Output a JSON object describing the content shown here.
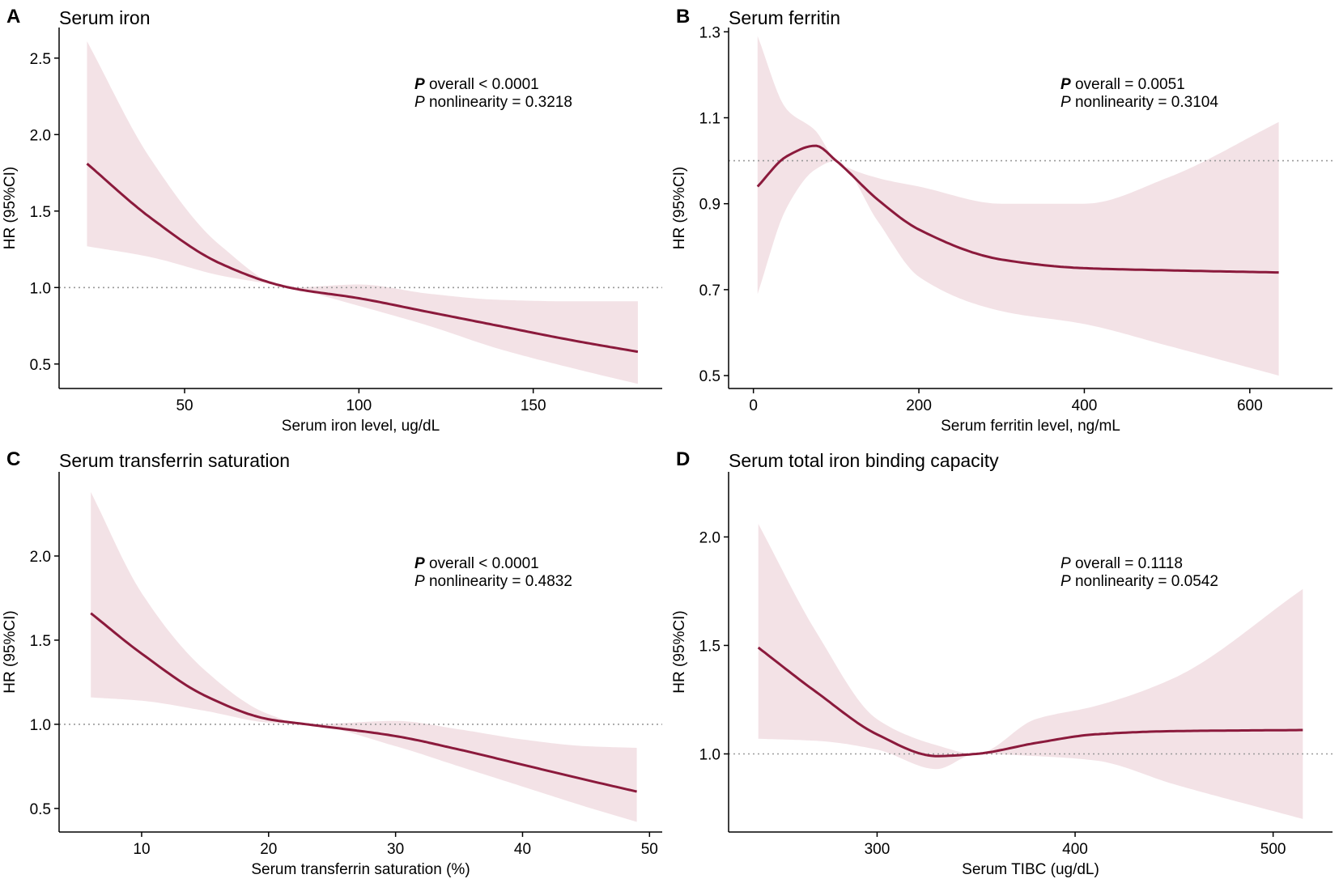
{
  "figure": {
    "colors": {
      "curve": "#8b1a3c",
      "band": "#f3e2e6",
      "reference": "#9a9a9a",
      "axis": "#000000"
    }
  },
  "chart_data": [
    {
      "type": "line",
      "panel": "A",
      "title": "Serum iron",
      "xlabel": "Serum iron level, ug/dL",
      "ylabel": "HR (95%CI)",
      "xlim": [
        14,
        187
      ],
      "ylim": [
        0.34,
        2.7
      ],
      "xticks": [
        50,
        100,
        150
      ],
      "xtick_labels": [
        "50",
        "100",
        "150"
      ],
      "yticks": [
        0.5,
        1.0,
        1.5,
        2.0,
        2.5
      ],
      "ytick_labels": [
        "0.5",
        "1.0",
        "1.5",
        "2.0",
        "2.5"
      ],
      "reference_y": 1.0,
      "annotations": [
        {
          "p_label": "P",
          "p_bold": true,
          "text": " overall < 0.0001"
        },
        {
          "p_label": "P",
          "p_bold": false,
          "text": " nonlinearity = 0.3218"
        }
      ],
      "series": [
        {
          "name": "HR",
          "x": [
            22,
            40,
            60,
            80,
            100,
            120,
            140,
            160,
            180
          ],
          "values": [
            1.81,
            1.46,
            1.16,
            1.0,
            0.93,
            0.84,
            0.75,
            0.66,
            0.58
          ]
        },
        {
          "name": "lower 95% CI",
          "x": [
            22,
            40,
            60,
            80,
            100,
            120,
            140,
            160,
            180
          ],
          "values": [
            1.27,
            1.2,
            1.08,
            1.0,
            0.88,
            0.75,
            0.6,
            0.48,
            0.37
          ]
        },
        {
          "name": "upper 95% CI",
          "x": [
            22,
            40,
            60,
            80,
            100,
            120,
            140,
            160,
            180
          ],
          "values": [
            2.61,
            1.85,
            1.28,
            1.0,
            1.02,
            0.96,
            0.92,
            0.91,
            0.91
          ]
        }
      ]
    },
    {
      "type": "line",
      "panel": "B",
      "title": "Serum ferritin",
      "xlabel": "Serum ferritin level, ng/mL",
      "ylabel": "HR (95%CI)",
      "xlim": [
        -30,
        700
      ],
      "ylim": [
        0.47,
        1.31
      ],
      "xticks": [
        0,
        200,
        400,
        600
      ],
      "xtick_labels": [
        "0",
        "200",
        "400",
        "600"
      ],
      "yticks": [
        0.5,
        0.7,
        0.9,
        1.1,
        1.3
      ],
      "ytick_labels": [
        "0.5",
        "0.7",
        "0.9",
        "1.1",
        "1.3"
      ],
      "reference_y": 1.0,
      "annotations": [
        {
          "p_label": "P",
          "p_bold": true,
          "text": " overall = 0.0051"
        },
        {
          "p_label": "P",
          "p_bold": false,
          "text": " nonlinearity  = 0.3104"
        }
      ],
      "series": [
        {
          "name": "HR",
          "x": [
            5,
            40,
            75,
            100,
            150,
            200,
            300,
            400,
            500,
            635
          ],
          "values": [
            0.94,
            1.01,
            1.035,
            1.0,
            0.91,
            0.84,
            0.77,
            0.75,
            0.745,
            0.74
          ]
        },
        {
          "name": "lower 95% CI",
          "x": [
            5,
            40,
            75,
            100,
            150,
            200,
            300,
            400,
            500,
            635
          ],
          "values": [
            0.69,
            0.89,
            0.98,
            1.0,
            0.86,
            0.73,
            0.65,
            0.62,
            0.57,
            0.5
          ]
        },
        {
          "name": "upper 95% CI",
          "x": [
            5,
            40,
            75,
            100,
            150,
            200,
            300,
            400,
            500,
            635
          ],
          "values": [
            1.29,
            1.12,
            1.07,
            1.0,
            0.96,
            0.94,
            0.9,
            0.9,
            0.96,
            1.09
          ]
        }
      ]
    },
    {
      "type": "line",
      "panel": "C",
      "title": "Serum transferrin saturation",
      "xlabel": "Serum transferrin saturation (%)",
      "ylabel": "HR (95%CI)",
      "xlim": [
        3.5,
        51
      ],
      "ylim": [
        0.36,
        2.5
      ],
      "xticks": [
        10,
        20,
        30,
        40,
        50
      ],
      "xtick_labels": [
        "10",
        "20",
        "30",
        "40",
        "50"
      ],
      "yticks": [
        0.5,
        1.0,
        1.5,
        2.0
      ],
      "ytick_labels": [
        "0.5",
        "1.0",
        "1.5",
        "2.0"
      ],
      "reference_y": 1.0,
      "annotations": [
        {
          "p_label": "P",
          "p_bold": true,
          "text": " overall < 0.0001"
        },
        {
          "p_label": "P",
          "p_bold": false,
          "text": " nonlinearity = 0.4832"
        }
      ],
      "series": [
        {
          "name": "HR",
          "x": [
            6,
            10,
            15,
            20,
            23,
            30,
            35,
            40,
            45,
            49
          ],
          "values": [
            1.66,
            1.42,
            1.17,
            1.03,
            1.0,
            0.93,
            0.85,
            0.76,
            0.67,
            0.6
          ]
        },
        {
          "name": "lower 95% CI",
          "x": [
            6,
            10,
            15,
            20,
            23,
            30,
            35,
            40,
            45,
            49
          ],
          "values": [
            1.16,
            1.14,
            1.08,
            1.01,
            1.0,
            0.87,
            0.75,
            0.63,
            0.51,
            0.42
          ]
        },
        {
          "name": "upper 95% CI",
          "x": [
            6,
            10,
            15,
            20,
            23,
            30,
            35,
            40,
            45,
            49
          ],
          "values": [
            2.38,
            1.78,
            1.32,
            1.06,
            1.0,
            1.02,
            0.97,
            0.91,
            0.87,
            0.86
          ]
        }
      ]
    },
    {
      "type": "line",
      "panel": "D",
      "title": "Serum total iron binding capacity",
      "xlabel": "Serum TIBC (ug/dL)",
      "ylabel": "HR (95%CI)",
      "xlim": [
        225,
        530
      ],
      "ylim": [
        0.64,
        2.3
      ],
      "xticks": [
        300,
        400,
        500
      ],
      "xtick_labels": [
        "300",
        "400",
        "500"
      ],
      "yticks": [
        1.0,
        1.5,
        2.0
      ],
      "ytick_labels": [
        "1.0",
        "1.5",
        "2.0"
      ],
      "reference_y": 1.0,
      "annotations": [
        {
          "p_label": "P",
          "p_bold": false,
          "text": " overall = 0.1118"
        },
        {
          "p_label": "P",
          "p_bold": false,
          "text": " nonlinearity = 0.0542"
        }
      ],
      "series": [
        {
          "name": "HR",
          "x": [
            240,
            270,
            300,
            330,
            350,
            380,
            410,
            450,
            515
          ],
          "values": [
            1.49,
            1.28,
            1.09,
            0.99,
            1.0,
            1.05,
            1.09,
            1.105,
            1.11
          ]
        },
        {
          "name": "lower 95% CI",
          "x": [
            240,
            270,
            300,
            330,
            350,
            380,
            410,
            450,
            515
          ],
          "values": [
            1.07,
            1.06,
            1.02,
            0.93,
            1.0,
            0.99,
            0.97,
            0.86,
            0.7
          ]
        },
        {
          "name": "upper 95% CI",
          "x": [
            240,
            270,
            300,
            330,
            350,
            380,
            410,
            450,
            515
          ],
          "values": [
            2.06,
            1.55,
            1.16,
            1.04,
            1.0,
            1.16,
            1.22,
            1.35,
            1.76
          ]
        }
      ]
    }
  ]
}
